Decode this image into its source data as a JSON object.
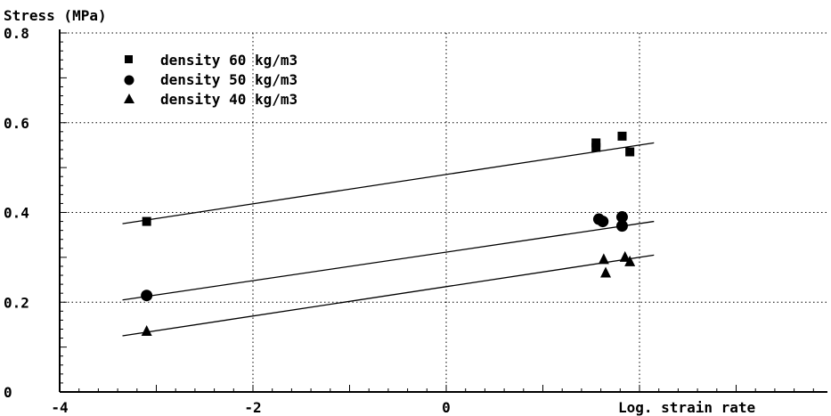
{
  "chart_data": {
    "type": "scatter",
    "title": "",
    "ylabel": "Stress (MPa)",
    "xlabel": "Log. strain rate",
    "xlim": [
      -4,
      4
    ],
    "ylim": [
      0,
      0.8
    ],
    "x_ticks": [
      -4,
      -2,
      0,
      2
    ],
    "x_tick_labels": [
      "-4",
      "-2",
      "0",
      ""
    ],
    "y_ticks": [
      0,
      0.2,
      0.4,
      0.6,
      0.8
    ],
    "y_tick_labels": [
      "0",
      "0.2",
      "0.4",
      "0.6",
      "0.8"
    ],
    "grid": true,
    "legend_position": "top-left",
    "series": [
      {
        "name": "density 60 kg/m3",
        "marker": "square",
        "points": [
          [
            -3.1,
            0.38
          ],
          [
            1.55,
            0.555
          ],
          [
            1.55,
            0.545
          ],
          [
            1.82,
            0.57
          ],
          [
            1.9,
            0.535
          ]
        ],
        "fit": [
          [
            -3.35,
            0.375
          ],
          [
            2.15,
            0.555
          ]
        ]
      },
      {
        "name": "density 50 kg/m3",
        "marker": "circle",
        "points": [
          [
            -3.1,
            0.215
          ],
          [
            1.58,
            0.385
          ],
          [
            1.62,
            0.38
          ],
          [
            1.82,
            0.39
          ],
          [
            1.82,
            0.37
          ]
        ],
        "fit": [
          [
            -3.35,
            0.205
          ],
          [
            2.15,
            0.38
          ]
        ]
      },
      {
        "name": "density 40 kg/m3",
        "marker": "triangle",
        "points": [
          [
            -3.1,
            0.135
          ],
          [
            1.63,
            0.295
          ],
          [
            1.65,
            0.265
          ],
          [
            1.85,
            0.3
          ],
          [
            1.9,
            0.29
          ]
        ],
        "fit": [
          [
            -3.35,
            0.125
          ],
          [
            2.15,
            0.305
          ]
        ]
      }
    ]
  }
}
